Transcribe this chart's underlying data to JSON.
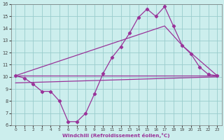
{
  "xlabel": "Windchill (Refroidissement éolien,°C)",
  "xlim": [
    -0.5,
    23.5
  ],
  "ylim": [
    6,
    16
  ],
  "xticks": [
    0,
    1,
    2,
    3,
    4,
    5,
    6,
    7,
    8,
    9,
    10,
    11,
    12,
    13,
    14,
    15,
    16,
    17,
    18,
    19,
    20,
    21,
    22,
    23
  ],
  "yticks": [
    6,
    7,
    8,
    9,
    10,
    11,
    12,
    13,
    14,
    15,
    16
  ],
  "bg_color": "#cceeed",
  "grid_color": "#99cccc",
  "line_color": "#993399",
  "line1_x": [
    0,
    1,
    2,
    3,
    4,
    5,
    6,
    7,
    8,
    9,
    10,
    11,
    12,
    13,
    14,
    15,
    16,
    17,
    18,
    19,
    20,
    21,
    22,
    23
  ],
  "line1_y": [
    10.1,
    9.9,
    9.4,
    8.8,
    8.8,
    8.0,
    6.3,
    6.3,
    7.0,
    8.6,
    10.3,
    11.6,
    12.5,
    13.6,
    14.9,
    15.6,
    15.0,
    15.8,
    14.2,
    12.6,
    11.9,
    10.8,
    10.2,
    10.1
  ],
  "line2_x": [
    0,
    23
  ],
  "line2_y": [
    10.1,
    10.1
  ],
  "line3_x": [
    0,
    17,
    19,
    23
  ],
  "line3_y": [
    10.1,
    14.2,
    12.6,
    10.1
  ],
  "line4_x": [
    0,
    23
  ],
  "line4_y": [
    9.5,
    10.0
  ]
}
